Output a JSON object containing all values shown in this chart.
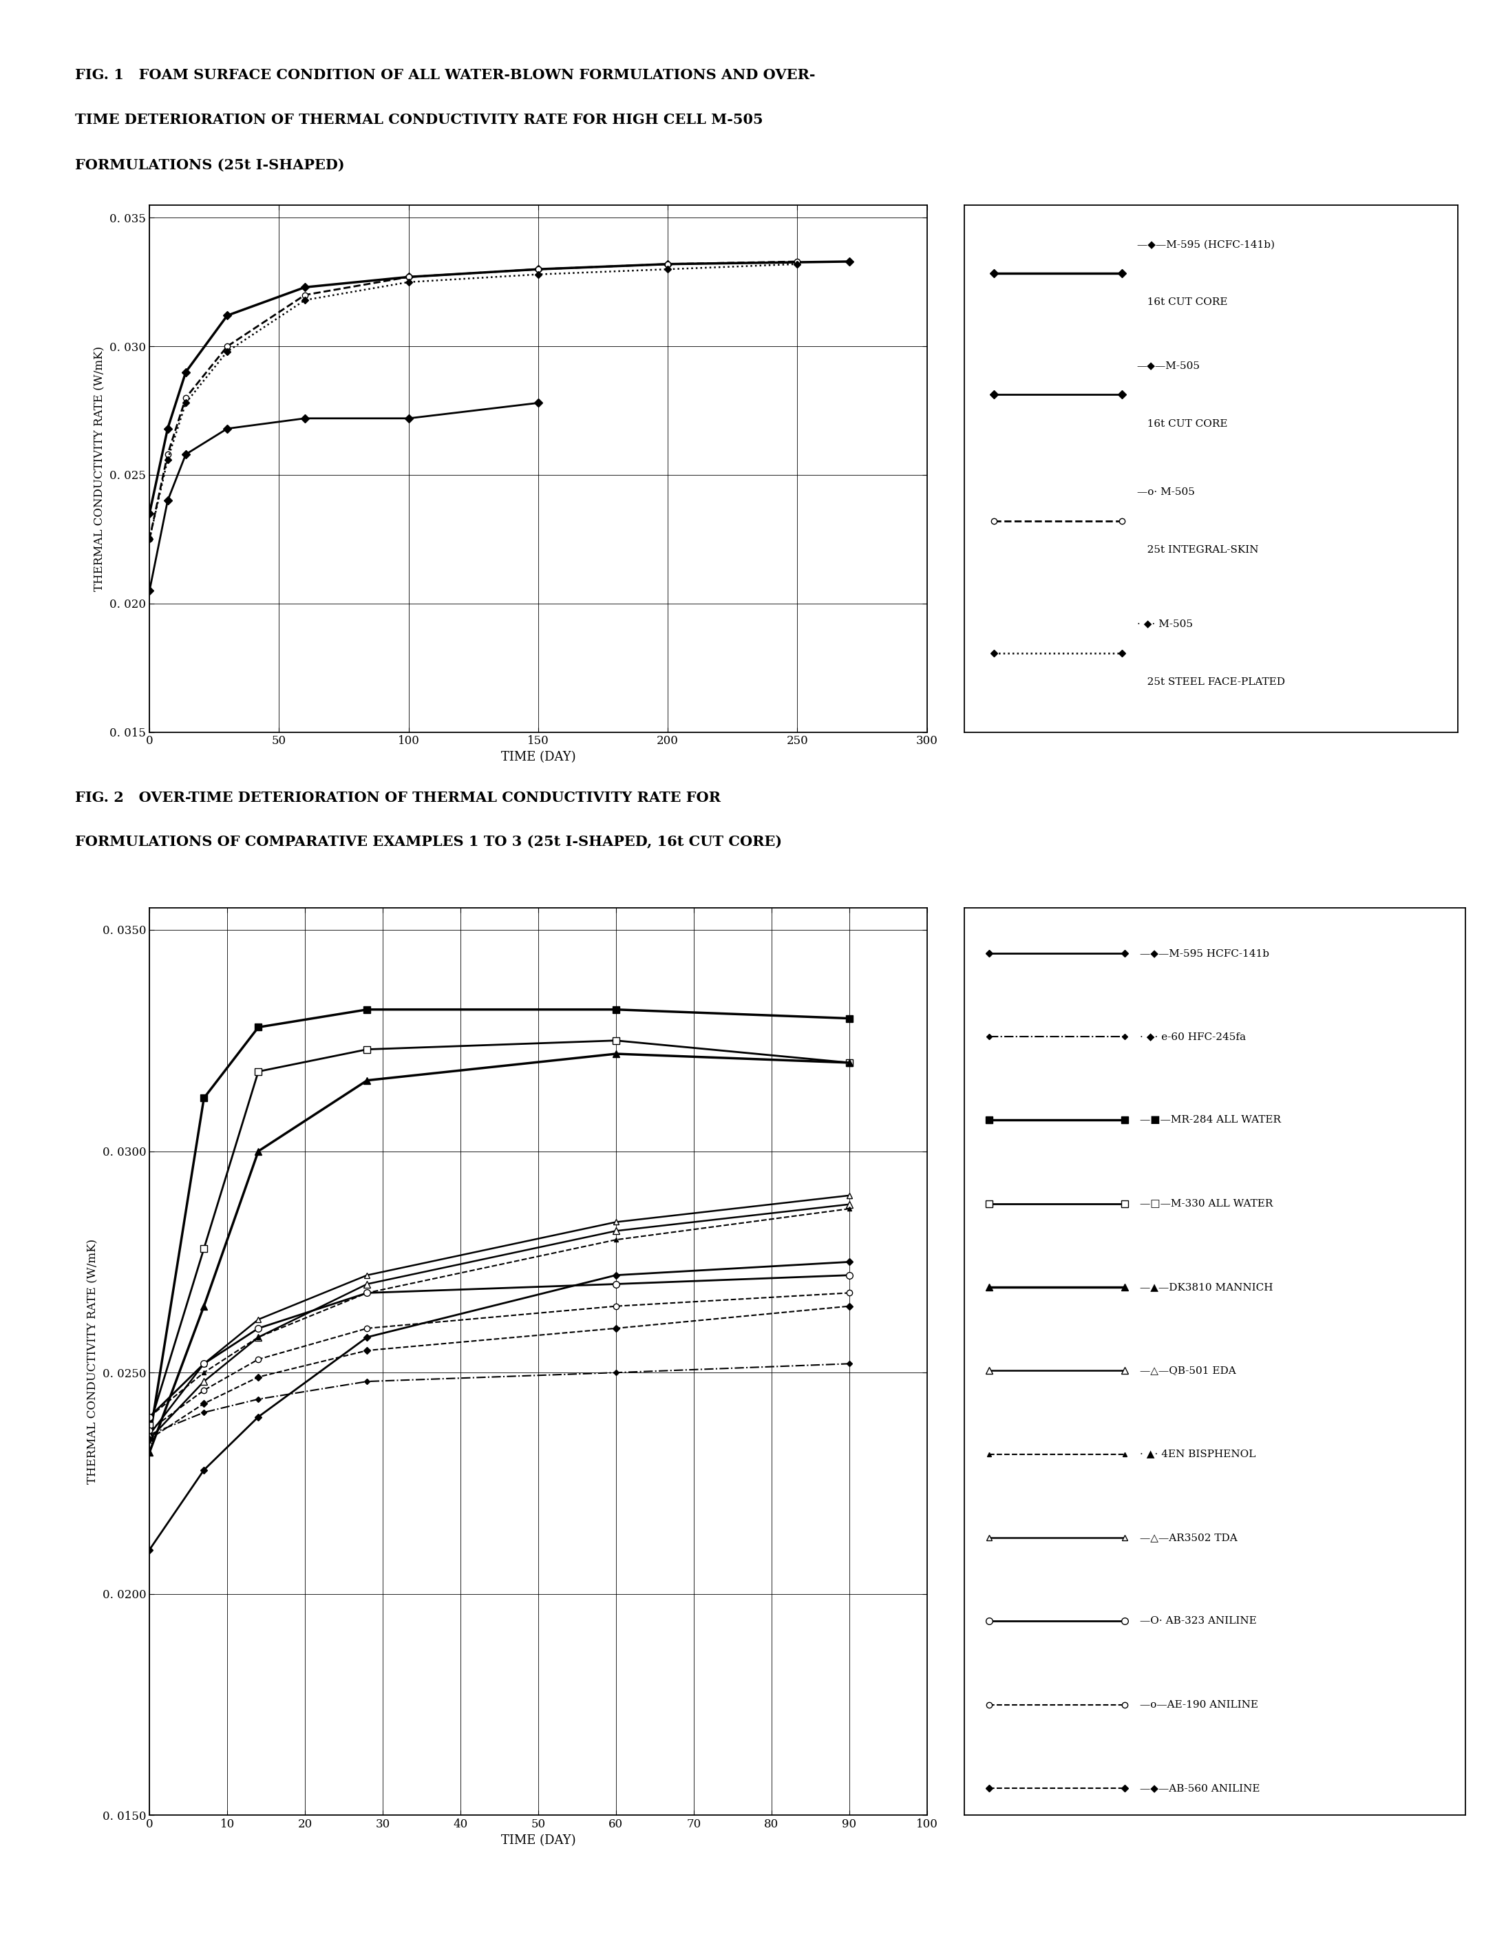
{
  "fig1_title_line1": "FIG. 1   FOAM SURFACE CONDITION OF ALL WATER-BLOWN FORMULATIONS AND OVER-",
  "fig1_title_line2": "TIME DETERIORATION OF THERMAL CONDUCTIVITY RATE FOR HIGH CELL M-505",
  "fig1_title_line3": "FORMULATIONS (25t I-SHAPED)",
  "fig2_title_line1": "FIG. 2   OVER-TIME DETERIORATION OF THERMAL CONDUCTIVITY RATE FOR",
  "fig2_title_line2": "FORMULATIONS OF COMPARATIVE EXAMPLES 1 TO 3 (25t I-SHAPED, 16t CUT CORE)",
  "ylabel": "THERMAL CONDUCTIVITY RATE (W/mK)",
  "xlabel": "TIME (DAY)",
  "fig1_series": [
    {
      "label_line1": "—◆—M-595 (HCFC-141b)",
      "label_line2": "   16t CUT CORE",
      "x": [
        0,
        7,
        14,
        30,
        60,
        100,
        150,
        200,
        270
      ],
      "y": [
        0.0235,
        0.0268,
        0.029,
        0.0312,
        0.0323,
        0.0327,
        0.033,
        0.0332,
        0.0333
      ],
      "ls": "-",
      "marker": "D",
      "ms": 6,
      "lw": 2.5,
      "mfc": "black"
    },
    {
      "label_line1": "—◆—M-505",
      "label_line2": "   16t CUT CORE",
      "x": [
        0,
        7,
        14,
        30,
        60,
        100,
        150
      ],
      "y": [
        0.0205,
        0.024,
        0.0258,
        0.0268,
        0.0272,
        0.0272,
        0.0278
      ],
      "ls": "-",
      "marker": "D",
      "ms": 6,
      "lw": 2.0,
      "mfc": "black"
    },
    {
      "label_line1": "—o· M-505",
      "label_line2": "   25t INTEGRAL-SKIN",
      "x": [
        0,
        7,
        14,
        30,
        60,
        100,
        150,
        200,
        250
      ],
      "y": [
        0.0225,
        0.0258,
        0.028,
        0.03,
        0.032,
        0.0327,
        0.033,
        0.0332,
        0.0333
      ],
      "ls": "--",
      "marker": "o",
      "ms": 6,
      "lw": 2.0,
      "mfc": "white"
    },
    {
      "label_line1": "· ◆· M-505",
      "label_line2": "   25t STEEL FACE-PLATED",
      "x": [
        0,
        7,
        14,
        30,
        60,
        100,
        150,
        200,
        250
      ],
      "y": [
        0.0225,
        0.0256,
        0.0278,
        0.0298,
        0.0318,
        0.0325,
        0.0328,
        0.033,
        0.0332
      ],
      "ls": ":",
      "marker": "D",
      "ms": 5,
      "lw": 1.8,
      "mfc": "black"
    }
  ],
  "fig2_series": [
    {
      "label": "—◆—M-595 HCFC-141b",
      "x": [
        0,
        7,
        14,
        28,
        60,
        90
      ],
      "y": [
        0.021,
        0.0228,
        0.024,
        0.0258,
        0.0272,
        0.0275
      ],
      "ls": "-",
      "marker": "D",
      "ms": 5,
      "lw": 2.0,
      "mfc": "black"
    },
    {
      "label": "· ◆· e-60 HFC-245fa",
      "x": [
        0,
        7,
        14,
        28,
        60,
        90
      ],
      "y": [
        0.0236,
        0.0241,
        0.0244,
        0.0248,
        0.025,
        0.0252
      ],
      "ls": "-.",
      "marker": "D",
      "ms": 4,
      "lw": 1.5,
      "mfc": "black"
    },
    {
      "label": "—■—MR-284 ALL WATER",
      "x": [
        0,
        7,
        14,
        28,
        60,
        90
      ],
      "y": [
        0.0235,
        0.0312,
        0.0328,
        0.0332,
        0.0332,
        0.033
      ],
      "ls": "-",
      "marker": "s",
      "ms": 7,
      "lw": 2.5,
      "mfc": "black"
    },
    {
      "label": "—□—M-330 ALL WATER",
      "x": [
        0,
        7,
        14,
        28,
        60,
        90
      ],
      "y": [
        0.0238,
        0.0278,
        0.0318,
        0.0323,
        0.0325,
        0.032
      ],
      "ls": "-",
      "marker": "s",
      "ms": 7,
      "lw": 2.0,
      "mfc": "white"
    },
    {
      "label": "—▲—DK3810 MANNICH",
      "x": [
        0,
        7,
        14,
        28,
        60,
        90
      ],
      "y": [
        0.0232,
        0.0265,
        0.03,
        0.0316,
        0.0322,
        0.032
      ],
      "ls": "-",
      "marker": "^",
      "ms": 7,
      "lw": 2.5,
      "mfc": "black"
    },
    {
      "label": "—△—QB-501 EDA",
      "x": [
        0,
        7,
        14,
        28,
        60,
        90
      ],
      "y": [
        0.0235,
        0.0248,
        0.0258,
        0.027,
        0.0282,
        0.0288
      ],
      "ls": "-",
      "marker": "^",
      "ms": 7,
      "lw": 1.8,
      "mfc": "white"
    },
    {
      "label": "· ▲· 4EN BISPHENOL",
      "x": [
        0,
        7,
        14,
        28,
        60,
        90
      ],
      "y": [
        0.024,
        0.025,
        0.0258,
        0.0268,
        0.028,
        0.0287
      ],
      "ls": "--",
      "marker": "^",
      "ms": 5,
      "lw": 1.5,
      "mfc": "black"
    },
    {
      "label": "—△—AR3502 TDA",
      "x": [
        0,
        7,
        14,
        28,
        60,
        90
      ],
      "y": [
        0.0236,
        0.0252,
        0.0262,
        0.0272,
        0.0284,
        0.029
      ],
      "ls": "-",
      "marker": "^",
      "ms": 6,
      "lw": 1.8,
      "mfc": "white"
    },
    {
      "label": "—O· AB-323 ANILINE",
      "x": [
        0,
        7,
        14,
        28,
        60,
        90
      ],
      "y": [
        0.024,
        0.0252,
        0.026,
        0.0268,
        0.027,
        0.0272
      ],
      "ls": "-",
      "marker": "o",
      "ms": 7,
      "lw": 2.0,
      "mfc": "white"
    },
    {
      "label": "—o—AE-190 ANILINE",
      "x": [
        0,
        7,
        14,
        28,
        60,
        90
      ],
      "y": [
        0.0237,
        0.0246,
        0.0253,
        0.026,
        0.0265,
        0.0268
      ],
      "ls": "--",
      "marker": "o",
      "ms": 6,
      "lw": 1.5,
      "mfc": "white"
    },
    {
      "label": "—◆—AB-560 ANILINE",
      "x": [
        0,
        7,
        14,
        28,
        60,
        90
      ],
      "y": [
        0.0235,
        0.0243,
        0.0249,
        0.0255,
        0.026,
        0.0265
      ],
      "ls": "--",
      "marker": "D",
      "ms": 5,
      "lw": 1.5,
      "mfc": "black"
    }
  ]
}
